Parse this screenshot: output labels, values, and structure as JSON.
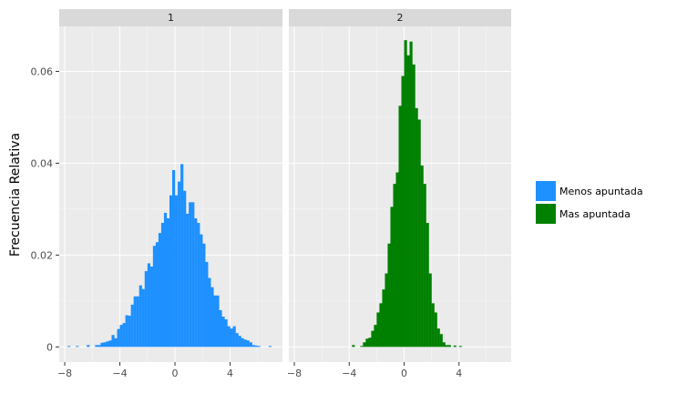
{
  "chart_data": {
    "type": "bar",
    "ylabel": "Frecuencia Relativa",
    "xlabel": "",
    "xlim": [
      -8.4,
      7.8
    ],
    "ylim": [
      -0.0033,
      0.0698
    ],
    "x_ticks": [
      -8,
      -4,
      0,
      4
    ],
    "y_ticks": [
      0,
      0.02,
      0.04,
      0.06
    ],
    "x_tick_labels": [
      "−8",
      "−4",
      "0",
      "4"
    ],
    "y_tick_labels": [
      "0",
      "0.02",
      "0.04",
      "0.06"
    ],
    "grid": true,
    "legend_position": "right",
    "facets": [
      "1",
      "2"
    ],
    "series": [
      {
        "name": "Menos apuntada",
        "facet": "1",
        "color": "#1E90FF",
        "bins": [
          {
            "x0": -7.8,
            "x1": -7.6,
            "y": 0.0002
          },
          {
            "x0": -7.2,
            "x1": -7.0,
            "y": 0.0002
          },
          {
            "x0": -6.4,
            "x1": -6.2,
            "y": 0.0004
          },
          {
            "x0": -5.8,
            "x1": -5.6,
            "y": 0.0004
          },
          {
            "x0": -5.6,
            "x1": -5.4,
            "y": 0.0004
          },
          {
            "x0": -5.4,
            "x1": -5.2,
            "y": 0.0009
          },
          {
            "x0": -5.2,
            "x1": -5.0,
            "y": 0.001
          },
          {
            "x0": -5.0,
            "x1": -4.8,
            "y": 0.0012
          },
          {
            "x0": -4.8,
            "x1": -4.6,
            "y": 0.0014
          },
          {
            "x0": -4.6,
            "x1": -4.4,
            "y": 0.0026
          },
          {
            "x0": -4.4,
            "x1": -4.2,
            "y": 0.0019
          },
          {
            "x0": -4.2,
            "x1": -4.0,
            "y": 0.0039
          },
          {
            "x0": -4.0,
            "x1": -3.8,
            "y": 0.0048
          },
          {
            "x0": -3.8,
            "x1": -3.6,
            "y": 0.0052
          },
          {
            "x0": -3.6,
            "x1": -3.4,
            "y": 0.0069
          },
          {
            "x0": -3.4,
            "x1": -3.2,
            "y": 0.0068
          },
          {
            "x0": -3.2,
            "x1": -3.0,
            "y": 0.0092
          },
          {
            "x0": -3.0,
            "x1": -2.8,
            "y": 0.011
          },
          {
            "x0": -2.8,
            "x1": -2.6,
            "y": 0.011
          },
          {
            "x0": -2.6,
            "x1": -2.4,
            "y": 0.0134
          },
          {
            "x0": -2.4,
            "x1": -2.2,
            "y": 0.0126
          },
          {
            "x0": -2.2,
            "x1": -2.0,
            "y": 0.0165
          },
          {
            "x0": -2.0,
            "x1": -1.8,
            "y": 0.0182
          },
          {
            "x0": -1.8,
            "x1": -1.6,
            "y": 0.0175
          },
          {
            "x0": -1.6,
            "x1": -1.4,
            "y": 0.022
          },
          {
            "x0": -1.4,
            "x1": -1.2,
            "y": 0.0228
          },
          {
            "x0": -1.2,
            "x1": -1.0,
            "y": 0.0248
          },
          {
            "x0": -1.0,
            "x1": -0.8,
            "y": 0.027
          },
          {
            "x0": -0.8,
            "x1": -0.6,
            "y": 0.0292
          },
          {
            "x0": -0.6,
            "x1": -0.4,
            "y": 0.028
          },
          {
            "x0": -0.4,
            "x1": -0.2,
            "y": 0.033
          },
          {
            "x0": -0.2,
            "x1": 0.0,
            "y": 0.0385
          },
          {
            "x0": 0.0,
            "x1": 0.2,
            "y": 0.033
          },
          {
            "x0": 0.2,
            "x1": 0.4,
            "y": 0.036
          },
          {
            "x0": 0.4,
            "x1": 0.6,
            "y": 0.0398
          },
          {
            "x0": 0.6,
            "x1": 0.8,
            "y": 0.034
          },
          {
            "x0": 0.8,
            "x1": 1.0,
            "y": 0.029
          },
          {
            "x0": 1.0,
            "x1": 1.2,
            "y": 0.0315
          },
          {
            "x0": 1.2,
            "x1": 1.4,
            "y": 0.0315
          },
          {
            "x0": 1.4,
            "x1": 1.6,
            "y": 0.028
          },
          {
            "x0": 1.6,
            "x1": 1.8,
            "y": 0.027
          },
          {
            "x0": 1.8,
            "x1": 2.0,
            "y": 0.0245
          },
          {
            "x0": 2.0,
            "x1": 2.2,
            "y": 0.0225
          },
          {
            "x0": 2.2,
            "x1": 2.4,
            "y": 0.0185
          },
          {
            "x0": 2.4,
            "x1": 2.6,
            "y": 0.015
          },
          {
            "x0": 2.6,
            "x1": 2.8,
            "y": 0.013
          },
          {
            "x0": 2.8,
            "x1": 3.0,
            "y": 0.0112
          },
          {
            "x0": 3.0,
            "x1": 3.2,
            "y": 0.0112
          },
          {
            "x0": 3.2,
            "x1": 3.4,
            "y": 0.008
          },
          {
            "x0": 3.4,
            "x1": 3.6,
            "y": 0.0066
          },
          {
            "x0": 3.6,
            "x1": 3.8,
            "y": 0.006
          },
          {
            "x0": 3.8,
            "x1": 4.0,
            "y": 0.0045
          },
          {
            "x0": 4.0,
            "x1": 4.2,
            "y": 0.004
          },
          {
            "x0": 4.2,
            "x1": 4.4,
            "y": 0.0045
          },
          {
            "x0": 4.4,
            "x1": 4.6,
            "y": 0.003
          },
          {
            "x0": 4.6,
            "x1": 4.8,
            "y": 0.0024
          },
          {
            "x0": 4.8,
            "x1": 5.0,
            "y": 0.0019
          },
          {
            "x0": 5.0,
            "x1": 5.2,
            "y": 0.0016
          },
          {
            "x0": 5.2,
            "x1": 5.4,
            "y": 0.0014
          },
          {
            "x0": 5.4,
            "x1": 5.6,
            "y": 0.001
          },
          {
            "x0": 5.6,
            "x1": 5.8,
            "y": 0.0004
          },
          {
            "x0": 5.8,
            "x1": 6.0,
            "y": 0.0003
          },
          {
            "x0": 6.0,
            "x1": 6.2,
            "y": 0.0002
          },
          {
            "x0": 6.8,
            "x1": 7.0,
            "y": 0.0002
          }
        ]
      },
      {
        "name": "Mas apuntada",
        "facet": "2",
        "color": "#008000",
        "bins": [
          {
            "x0": -3.8,
            "x1": -3.6,
            "y": 0.0004
          },
          {
            "x0": -3.2,
            "x1": -3.0,
            "y": 0.0002
          },
          {
            "x0": -3.0,
            "x1": -2.8,
            "y": 0.001
          },
          {
            "x0": -2.8,
            "x1": -2.6,
            "y": 0.0018
          },
          {
            "x0": -2.6,
            "x1": -2.4,
            "y": 0.002
          },
          {
            "x0": -2.4,
            "x1": -2.2,
            "y": 0.0035
          },
          {
            "x0": -2.2,
            "x1": -2.0,
            "y": 0.0048
          },
          {
            "x0": -2.0,
            "x1": -1.8,
            "y": 0.0075
          },
          {
            "x0": -1.8,
            "x1": -1.6,
            "y": 0.0095
          },
          {
            "x0": -1.6,
            "x1": -1.4,
            "y": 0.0125
          },
          {
            "x0": -1.4,
            "x1": -1.2,
            "y": 0.016
          },
          {
            "x0": -1.2,
            "x1": -1.0,
            "y": 0.0225
          },
          {
            "x0": -1.0,
            "x1": -0.8,
            "y": 0.0305
          },
          {
            "x0": -0.8,
            "x1": -0.6,
            "y": 0.0355
          },
          {
            "x0": -0.6,
            "x1": -0.4,
            "y": 0.038
          },
          {
            "x0": -0.4,
            "x1": -0.2,
            "y": 0.0525
          },
          {
            "x0": -0.2,
            "x1": 0.0,
            "y": 0.059
          },
          {
            "x0": 0.0,
            "x1": 0.2,
            "y": 0.0668
          },
          {
            "x0": 0.2,
            "x1": 0.4,
            "y": 0.0635
          },
          {
            "x0": 0.4,
            "x1": 0.6,
            "y": 0.0665
          },
          {
            "x0": 0.6,
            "x1": 0.8,
            "y": 0.0615
          },
          {
            "x0": 0.8,
            "x1": 1.0,
            "y": 0.052
          },
          {
            "x0": 1.0,
            "x1": 1.2,
            "y": 0.0495
          },
          {
            "x0": 1.2,
            "x1": 1.4,
            "y": 0.0395
          },
          {
            "x0": 1.4,
            "x1": 1.6,
            "y": 0.0355
          },
          {
            "x0": 1.6,
            "x1": 1.8,
            "y": 0.027
          },
          {
            "x0": 1.8,
            "x1": 2.0,
            "y": 0.016
          },
          {
            "x0": 2.0,
            "x1": 2.2,
            "y": 0.0095
          },
          {
            "x0": 2.2,
            "x1": 2.4,
            "y": 0.0075
          },
          {
            "x0": 2.4,
            "x1": 2.6,
            "y": 0.004
          },
          {
            "x0": 2.6,
            "x1": 2.8,
            "y": 0.0028
          },
          {
            "x0": 2.8,
            "x1": 3.0,
            "y": 0.001
          },
          {
            "x0": 3.0,
            "x1": 3.2,
            "y": 0.0004
          },
          {
            "x0": 3.2,
            "x1": 3.4,
            "y": 0.0004
          },
          {
            "x0": 3.6,
            "x1": 3.8,
            "y": 0.0003
          },
          {
            "x0": 4.0,
            "x1": 4.2,
            "y": 0.0002
          }
        ]
      }
    ]
  },
  "legend": {
    "items": [
      {
        "label": "Menos apuntada",
        "color": "#1E90FF"
      },
      {
        "label": "Mas apuntada",
        "color": "#008000"
      }
    ]
  },
  "style": {
    "panel_bg": "#EBEBEB",
    "strip_bg": "#D9D9D9",
    "grid_major": "#FFFFFF"
  }
}
